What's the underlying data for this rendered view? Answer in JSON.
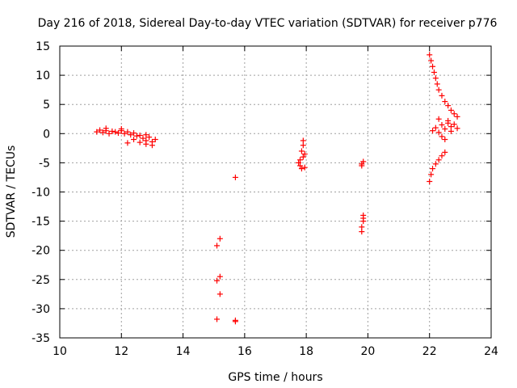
{
  "chart_data": {
    "type": "scatter",
    "title": "Day 216 of 2018, Sidereal Day-to-day VTEC variation (SDTVAR) for receiver p776",
    "xlabel": "GPS time / hours",
    "ylabel": "SDTVAR / TECUs",
    "xlim": [
      10,
      24
    ],
    "ylim": [
      -35,
      15
    ],
    "xticks": [
      10,
      12,
      14,
      16,
      18,
      20,
      22,
      24
    ],
    "yticks": [
      15,
      10,
      5,
      0,
      -5,
      -10,
      -15,
      -20,
      -25,
      -30,
      -35
    ],
    "xtick_labels": [
      "10",
      "12",
      "14",
      "16",
      "18",
      "20",
      "22",
      "24"
    ],
    "ytick_labels": [
      "15",
      "10",
      "5",
      "0",
      "-5",
      "-10",
      "-15",
      "-20",
      "-25",
      "-30",
      "-35"
    ],
    "grid": true,
    "marker": "+",
    "marker_color": "#ff0000",
    "series": [
      {
        "name": "p776",
        "points": [
          [
            11.2,
            0.3
          ],
          [
            11.3,
            0.6
          ],
          [
            11.4,
            0.2
          ],
          [
            11.5,
            0.5
          ],
          [
            11.6,
            0.0
          ],
          [
            11.7,
            0.4
          ],
          [
            11.8,
            0.3
          ],
          [
            11.9,
            0.1
          ],
          [
            12.0,
            0.5
          ],
          [
            12.1,
            0.0
          ],
          [
            12.2,
            0.3
          ],
          [
            12.3,
            -0.2
          ],
          [
            12.4,
            0.1
          ],
          [
            12.5,
            -0.4
          ],
          [
            12.6,
            -0.3
          ],
          [
            12.7,
            -0.8
          ],
          [
            12.8,
            -1.2
          ],
          [
            12.9,
            -0.6
          ],
          [
            13.0,
            -1.4
          ],
          [
            13.1,
            -1.0
          ],
          [
            12.2,
            -1.6
          ],
          [
            12.4,
            -1.0
          ],
          [
            12.6,
            -1.5
          ],
          [
            12.8,
            -1.8
          ],
          [
            13.0,
            -2.0
          ],
          [
            12.0,
            0.8
          ],
          [
            11.5,
            0.9
          ],
          [
            12.8,
            -0.2
          ],
          [
            15.7,
            -7.5
          ],
          [
            15.1,
            -19.2
          ],
          [
            15.2,
            -18.0
          ],
          [
            15.1,
            -25.2
          ],
          [
            15.2,
            -24.5
          ],
          [
            15.2,
            -27.5
          ],
          [
            15.1,
            -31.8
          ],
          [
            15.7,
            -32.2
          ],
          [
            15.7,
            -32.0
          ],
          [
            17.8,
            -5.5
          ],
          [
            17.8,
            -4.5
          ],
          [
            17.85,
            -3.0
          ],
          [
            17.9,
            -2.0
          ],
          [
            17.9,
            -1.2
          ],
          [
            17.9,
            -4.0
          ],
          [
            17.95,
            -5.8
          ],
          [
            17.95,
            -3.5
          ],
          [
            17.85,
            -6.0
          ],
          [
            17.75,
            -5.0
          ],
          [
            19.8,
            -5.5
          ],
          [
            19.85,
            -4.8
          ],
          [
            19.8,
            -5.2
          ],
          [
            19.8,
            -16.8
          ],
          [
            19.8,
            -16.0
          ],
          [
            19.85,
            -15.0
          ],
          [
            19.85,
            -14.5
          ],
          [
            19.85,
            -14.0
          ],
          [
            22.0,
            13.5
          ],
          [
            22.05,
            12.5
          ],
          [
            22.1,
            11.5
          ],
          [
            22.15,
            10.5
          ],
          [
            22.2,
            9.5
          ],
          [
            22.25,
            8.5
          ],
          [
            22.3,
            7.5
          ],
          [
            22.4,
            6.5
          ],
          [
            22.5,
            5.5
          ],
          [
            22.6,
            4.8
          ],
          [
            22.7,
            4.0
          ],
          [
            22.8,
            3.4
          ],
          [
            22.9,
            2.9
          ],
          [
            22.1,
            0.5
          ],
          [
            22.2,
            1.0
          ],
          [
            22.3,
            0.2
          ],
          [
            22.4,
            1.5
          ],
          [
            22.5,
            0.8
          ],
          [
            22.6,
            1.8
          ],
          [
            22.7,
            1.2
          ],
          [
            22.8,
            1.6
          ],
          [
            22.9,
            0.9
          ],
          [
            22.4,
            -0.5
          ],
          [
            22.5,
            -1.0
          ],
          [
            22.6,
            2.2
          ],
          [
            22.3,
            2.5
          ],
          [
            22.7,
            0.4
          ],
          [
            22.0,
            -8.2
          ],
          [
            22.05,
            -7.0
          ],
          [
            22.1,
            -6.0
          ],
          [
            22.2,
            -5.2
          ],
          [
            22.3,
            -4.5
          ],
          [
            22.4,
            -3.8
          ],
          [
            22.5,
            -3.2
          ]
        ]
      }
    ]
  }
}
